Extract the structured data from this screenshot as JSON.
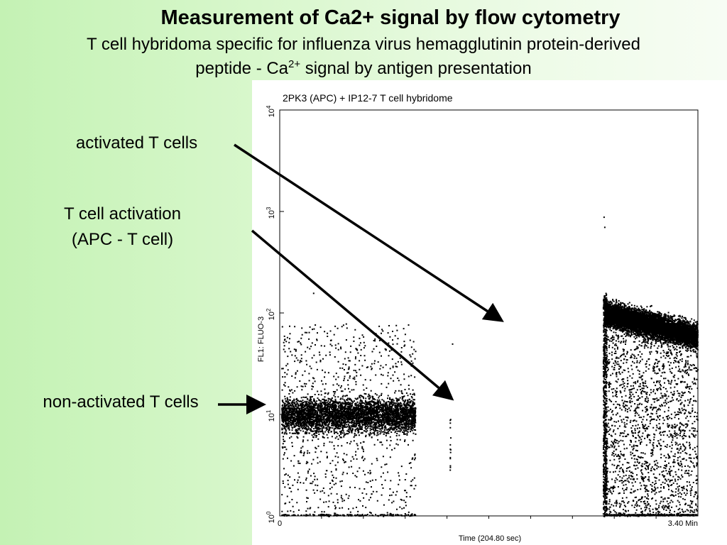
{
  "slide": {
    "title": "Measurement of Ca2+ signal by flow cytometry",
    "subtitle_line1": "T cell hybridoma specific for influenza virus hemagglutinin protein-derived",
    "subtitle_line2_pre": "peptide  - Ca",
    "subtitle_sup": "2+",
    "subtitle_line2_post": " signal by antigen presentation"
  },
  "labels": {
    "activated": "activated T cells",
    "activation_line1": "T cell activation",
    "activation_line2": "(APC - T cell)",
    "non_activated": "non-activated T cells"
  },
  "plot": {
    "title": "2PK3 (APC) + IP12-7 T cell hybridome",
    "ylabel": "FL1: FLUO-3",
    "xlabel": "Time (204.80 sec)",
    "x_start_label": "0",
    "x_end_label": "3.40 Min",
    "y_ticks": [
      {
        "base": "10",
        "exp": "0"
      },
      {
        "base": "10",
        "exp": "1"
      },
      {
        "base": "10",
        "exp": "2"
      },
      {
        "base": "10",
        "exp": "3"
      },
      {
        "base": "10",
        "exp": "4"
      }
    ]
  },
  "chart_data": {
    "type": "scatter",
    "title": "2PK3 (APC) + IP12-7 T cell hybridome",
    "xlabel": "Time (204.80 sec)",
    "ylabel": "FL1: FLUO-3",
    "x_unit": "min",
    "xlim": [
      0,
      3.4
    ],
    "ylim": [
      1,
      10000
    ],
    "y_scale": "log",
    "populations": [
      {
        "name": "non-activated T cells",
        "time_range": [
          0,
          1.1
        ],
        "median_fluorescence": 10,
        "spread_log10": [
          0,
          1.9
        ]
      },
      {
        "name": "activated T cells",
        "time_range": [
          2.62,
          3.4
        ],
        "median_fluorescence_start": 100,
        "median_fluorescence_end": 60,
        "spread_log10": [
          0,
          2.4
        ]
      }
    ],
    "gap_time_range": [
      1.1,
      2.62
    ]
  },
  "colors": {
    "arrow": "#000000",
    "dots": "#000000",
    "plot_bg": "#ffffff"
  }
}
